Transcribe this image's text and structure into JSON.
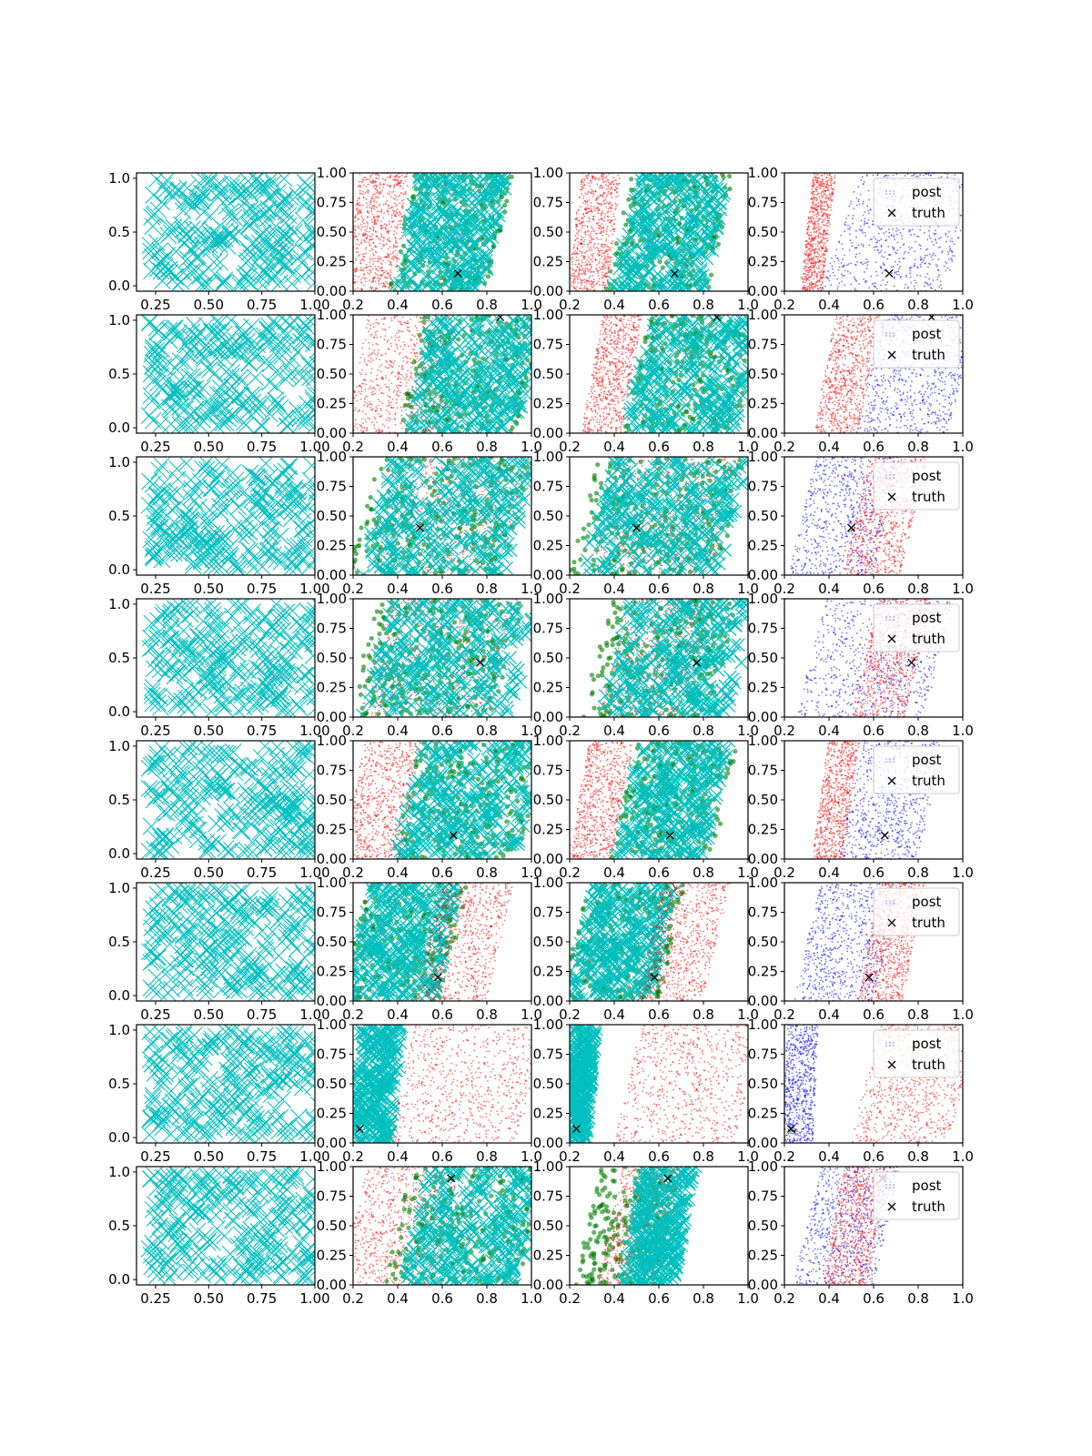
{
  "figure": {
    "rows": 8,
    "cols": 4,
    "grid": false
  },
  "legend": {
    "placement": "top-right",
    "entries": [
      "post",
      "truth"
    ]
  },
  "colors": {
    "prior": "#00bfbf",
    "red": "#ff0000",
    "green": "#008000",
    "cyan": "#00bfbf",
    "blue": "#0000ff",
    "truth": "#000000"
  },
  "axes": {
    "col0": {
      "xlim": [
        0.16,
        1.0
      ],
      "ylim": [
        -0.05,
        1.05
      ],
      "xticks": [
        "0.25",
        "0.50",
        "0.75",
        "1.00"
      ],
      "yticks": [
        "0.0",
        "0.5",
        "1.0"
      ]
    },
    "col1": {
      "xlim": [
        0.2,
        1.0
      ],
      "ylim": [
        0.0,
        1.0
      ],
      "xticks": [
        "0.2",
        "0.4",
        "0.6",
        "0.8",
        "1.0"
      ],
      "yticks": [
        "0.00",
        "0.25",
        "0.50",
        "0.75",
        "1.00"
      ]
    },
    "col2": {
      "xlim": [
        0.2,
        1.0
      ],
      "ylim": [
        0.0,
        1.0
      ],
      "xticks": [
        "0.2",
        "0.4",
        "0.6",
        "0.8",
        "1.0"
      ],
      "yticks": [
        "0.00",
        "0.25",
        "0.50",
        "0.75",
        "1.00"
      ]
    },
    "col3": {
      "xlim": [
        0.2,
        1.0
      ],
      "ylim": [
        0.0,
        1.0
      ],
      "xticks": [
        "0.2",
        "0.4",
        "0.6",
        "0.8",
        "1.0"
      ],
      "yticks": [
        "0.00",
        "0.25",
        "0.50",
        "0.75",
        "1.00"
      ]
    }
  },
  "chart_data": {
    "type": "scatter",
    "rows": [
      {
        "truth": [
          0.67,
          0.15
        ],
        "c1": [
          {
            "color": "red",
            "x0": 0.2,
            "x1": 0.42,
            "skew": 0.05
          },
          {
            "color": "green",
            "x0": 0.42,
            "x1": 0.86,
            "skew": 0.1
          },
          {
            "color": "cyan",
            "x0": 0.44,
            "x1": 0.84,
            "skew": 0.1
          }
        ],
        "c2": [
          {
            "color": "red",
            "x0": 0.22,
            "x1": 0.4,
            "skew": 0.05
          },
          {
            "color": "green",
            "x0": 0.42,
            "x1": 0.88,
            "skew": 0.1
          },
          {
            "color": "cyan",
            "x0": 0.45,
            "x1": 0.86,
            "skew": 0.1
          }
        ],
        "c3": [
          {
            "color": "red",
            "x0": 0.3,
            "x1": 0.4,
            "skew": 0.05
          },
          {
            "color": "blue",
            "x0": 0.45,
            "x1": 1.0,
            "skew": 0.15
          }
        ]
      },
      {
        "truth": [
          0.86,
          0.98
        ],
        "c1": [
          {
            "color": "red",
            "x0": 0.22,
            "x1": 0.62,
            "skew": 0.08
          },
          {
            "color": "green",
            "x0": 0.46,
            "x1": 1.0,
            "skew": 0.1
          },
          {
            "color": "cyan",
            "x0": 0.5,
            "x1": 1.0,
            "skew": 0.1
          }
        ],
        "c2": [
          {
            "color": "red",
            "x0": 0.3,
            "x1": 0.48,
            "skew": 0.08
          },
          {
            "color": "green",
            "x0": 0.5,
            "x1": 1.0,
            "skew": 0.1
          },
          {
            "color": "cyan",
            "x0": 0.5,
            "x1": 1.0,
            "skew": 0.1
          }
        ],
        "c3": [
          {
            "color": "red",
            "x0": 0.38,
            "x1": 0.58,
            "skew": 0.08
          },
          {
            "color": "blue",
            "x0": 0.58,
            "x1": 1.0,
            "skew": 0.1
          }
        ]
      },
      {
        "truth": [
          0.5,
          0.4
        ],
        "c1": [
          {
            "color": "red",
            "x0": 0.36,
            "x1": 0.92,
            "skew": 0.12
          },
          {
            "color": "green",
            "x0": 0.24,
            "x1": 0.94,
            "skew": 0.12
          },
          {
            "color": "cyan",
            "x0": 0.3,
            "x1": 0.96,
            "skew": 0.12
          }
        ],
        "c2": [
          {
            "color": "red",
            "x0": 0.36,
            "x1": 0.9,
            "skew": 0.12
          },
          {
            "color": "green",
            "x0": 0.26,
            "x1": 0.94,
            "skew": 0.12
          },
          {
            "color": "cyan",
            "x0": 0.32,
            "x1": 0.94,
            "skew": 0.12
          }
        ],
        "c3": [
          {
            "color": "blue",
            "x0": 0.28,
            "x1": 0.66,
            "skew": 0.1
          },
          {
            "color": "red",
            "x0": 0.52,
            "x1": 0.78,
            "skew": 0.1
          }
        ]
      },
      {
        "truth": [
          0.77,
          0.46
        ],
        "c1": [
          {
            "color": "red",
            "x0": 0.3,
            "x1": 0.88,
            "skew": 0.12
          },
          {
            "color": "green",
            "x0": 0.24,
            "x1": 0.9,
            "skew": 0.12
          },
          {
            "color": "cyan",
            "x0": 0.3,
            "x1": 0.98,
            "skew": 0.12
          }
        ],
        "c2": [
          {
            "color": "red",
            "x0": 0.4,
            "x1": 0.78,
            "skew": 0.12
          },
          {
            "color": "green",
            "x0": 0.32,
            "x1": 0.9,
            "skew": 0.12
          },
          {
            "color": "cyan",
            "x0": 0.4,
            "x1": 0.98,
            "skew": 0.12
          }
        ],
        "c3": [
          {
            "color": "blue",
            "x0": 0.32,
            "x1": 0.9,
            "skew": 0.12
          },
          {
            "color": "red",
            "x0": 0.56,
            "x1": 0.8,
            "skew": 0.1
          }
        ]
      },
      {
        "truth": [
          0.65,
          0.2
        ],
        "c1": [
          {
            "color": "red",
            "x0": 0.2,
            "x1": 0.46,
            "skew": 0.08
          },
          {
            "color": "green",
            "x0": 0.44,
            "x1": 1.0,
            "skew": 0.1
          },
          {
            "color": "cyan",
            "x0": 0.44,
            "x1": 1.0,
            "skew": 0.1
          }
        ],
        "c2": [
          {
            "color": "red",
            "x0": 0.24,
            "x1": 0.44,
            "skew": 0.08
          },
          {
            "color": "green",
            "x0": 0.44,
            "x1": 0.9,
            "skew": 0.1
          },
          {
            "color": "cyan",
            "x0": 0.46,
            "x1": 0.86,
            "skew": 0.1
          }
        ],
        "c3": [
          {
            "color": "red",
            "x0": 0.36,
            "x1": 0.5,
            "skew": 0.06
          },
          {
            "color": "blue",
            "x0": 0.5,
            "x1": 0.86,
            "skew": 0.1
          }
        ]
      },
      {
        "truth": [
          0.58,
          0.2
        ],
        "c1": [
          {
            "color": "green",
            "x0": 0.2,
            "x1": 0.66,
            "skew": 0.1
          },
          {
            "color": "cyan",
            "x0": 0.22,
            "x1": 0.62,
            "skew": 0.1
          },
          {
            "color": "red",
            "x0": 0.54,
            "x1": 0.86,
            "skew": 0.1
          }
        ],
        "c2": [
          {
            "color": "green",
            "x0": 0.22,
            "x1": 0.66,
            "skew": 0.1
          },
          {
            "color": "cyan",
            "x0": 0.24,
            "x1": 0.62,
            "skew": 0.1
          },
          {
            "color": "red",
            "x0": 0.56,
            "x1": 0.86,
            "skew": 0.1
          }
        ],
        "c3": [
          {
            "color": "blue",
            "x0": 0.3,
            "x1": 0.66,
            "skew": 0.1
          },
          {
            "color": "red",
            "x0": 0.58,
            "x1": 0.78,
            "skew": 0.08
          }
        ]
      },
      {
        "truth": [
          0.23,
          0.12
        ],
        "c1": [
          {
            "color": "cyan",
            "x0": 0.2,
            "x1": 0.4,
            "skew": 0.06
          },
          {
            "color": "red",
            "x0": 0.42,
            "x1": 1.0,
            "skew": 0.1
          }
        ],
        "c2": [
          {
            "color": "cyan",
            "x0": 0.2,
            "x1": 0.3,
            "skew": 0.04
          },
          {
            "color": "red",
            "x0": 0.46,
            "x1": 1.0,
            "skew": 0.1
          }
        ],
        "c3": [
          {
            "color": "blue",
            "x0": 0.2,
            "x1": 0.34,
            "skew": 0.02
          },
          {
            "color": "red",
            "x0": 0.56,
            "x1": 1.0,
            "skew": 0.1
          }
        ]
      },
      {
        "truth": [
          0.64,
          0.9
        ],
        "c1": [
          {
            "color": "red",
            "x0": 0.2,
            "x1": 0.62,
            "skew": 0.1
          },
          {
            "color": "green",
            "x0": 0.4,
            "x1": 1.0,
            "skew": 0.1
          },
          {
            "color": "cyan",
            "x0": 0.48,
            "x1": 1.0,
            "skew": 0.1
          }
        ],
        "c2": [
          {
            "color": "green",
            "x0": 0.28,
            "x1": 0.64,
            "skew": 0.1
          },
          {
            "color": "red",
            "x0": 0.38,
            "x1": 0.66,
            "skew": 0.1
          },
          {
            "color": "cyan",
            "x0": 0.48,
            "x1": 0.72,
            "skew": 0.08
          }
        ],
        "c3": [
          {
            "color": "blue",
            "x0": 0.3,
            "x1": 0.66,
            "skew": 0.1
          },
          {
            "color": "red",
            "x0": 0.42,
            "x1": 0.62,
            "skew": 0.08
          }
        ]
      }
    ]
  }
}
